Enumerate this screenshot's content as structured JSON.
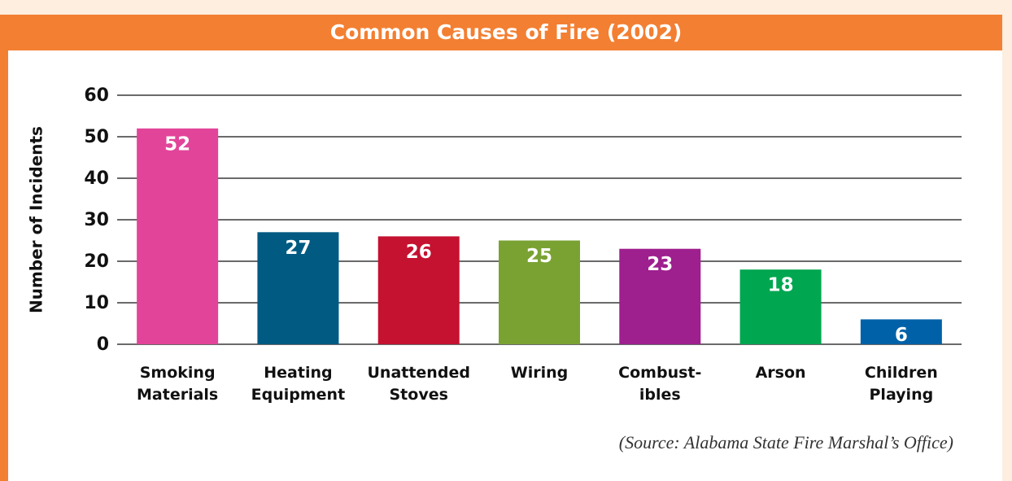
{
  "chart_data": {
    "type": "bar",
    "title": "Common Causes of Fire (2002)",
    "ylabel": "Number of Incidents",
    "source": "(Source: Alabama State Fire Marshal’s Office)",
    "categories": [
      [
        "Smoking",
        "Materials"
      ],
      [
        "Heating",
        "Equipment"
      ],
      [
        "Unattended",
        "Stoves"
      ],
      [
        "Wiring"
      ],
      [
        "Combust-",
        "ibles"
      ],
      [
        "Arson"
      ],
      [
        "Children",
        "Playing"
      ]
    ],
    "values": [
      52,
      27,
      26,
      25,
      23,
      18,
      6
    ],
    "colors": [
      "#e2449a",
      "#005a82",
      "#c41230",
      "#7aa233",
      "#9e1f8e",
      "#00a650",
      "#0061a8"
    ],
    "ylim": [
      0,
      60
    ],
    "yticks": [
      0,
      10,
      20,
      30,
      40,
      50,
      60
    ],
    "grid": true
  }
}
